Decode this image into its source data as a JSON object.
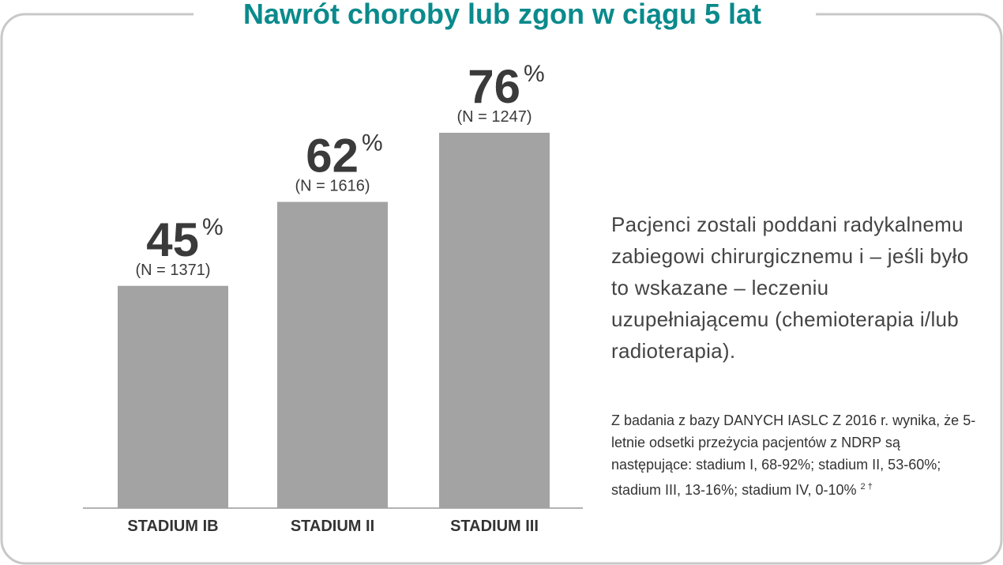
{
  "chart_data": {
    "type": "bar",
    "title": "Nawrót choroby lub zgon w ciągu 5 lat",
    "categories": [
      "STADIUM IB",
      "STADIUM II",
      "STADIUM III"
    ],
    "values": [
      45,
      62,
      76
    ],
    "unit": "%",
    "n_labels": [
      "(N = 1371)",
      "(N = 1616)",
      "(N = 1247)"
    ],
    "color": "#a3a3a3",
    "description": "Pacjenci zostali poddani radykalnemu zabiegowi chirurgicznemu i – jeśli było to wskazane – leczeniu uzupełniającemu (chemioterapia i/lub radioterapia).",
    "footnote": "Z badania z bazy DANYCH IASLC Z 2016 r. wynika, że 5-letnie odsetki przeżycia pacjentów z NDRP są następujące: stadium I, 68-92%; stadium II, 53-60%; stadium III, 13-16%; stadium IV, 0-10%",
    "footnote_ref": "2 †"
  }
}
